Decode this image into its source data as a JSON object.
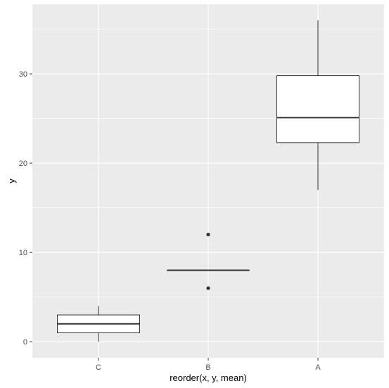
{
  "chart_data": {
    "type": "boxplot",
    "title": "",
    "xlabel": "reorder(x, y, mean)",
    "ylabel": "y",
    "categories": [
      "C",
      "B",
      "A"
    ],
    "boxes": [
      {
        "category": "C",
        "min": 0,
        "q1": 1,
        "median": 2,
        "q3": 3,
        "max": 4,
        "outliers": []
      },
      {
        "category": "B",
        "min": 8,
        "q1": 8,
        "median": 8,
        "q3": 8,
        "max": 8,
        "outliers": [
          12,
          6
        ]
      },
      {
        "category": "A",
        "min": 17,
        "q1": 22.3,
        "median": 25.1,
        "q3": 29.8,
        "max": 36,
        "outliers": []
      }
    ],
    "yticks": [
      0,
      10,
      20,
      30
    ],
    "ylim": [
      -1.8,
      37.8
    ],
    "grid": true,
    "colors": {
      "panel": "#ebebeb",
      "grid_major": "#ffffff",
      "box_fill": "#ffffff",
      "box_stroke": "#333333",
      "tick_text": "#4d4d4d"
    }
  }
}
